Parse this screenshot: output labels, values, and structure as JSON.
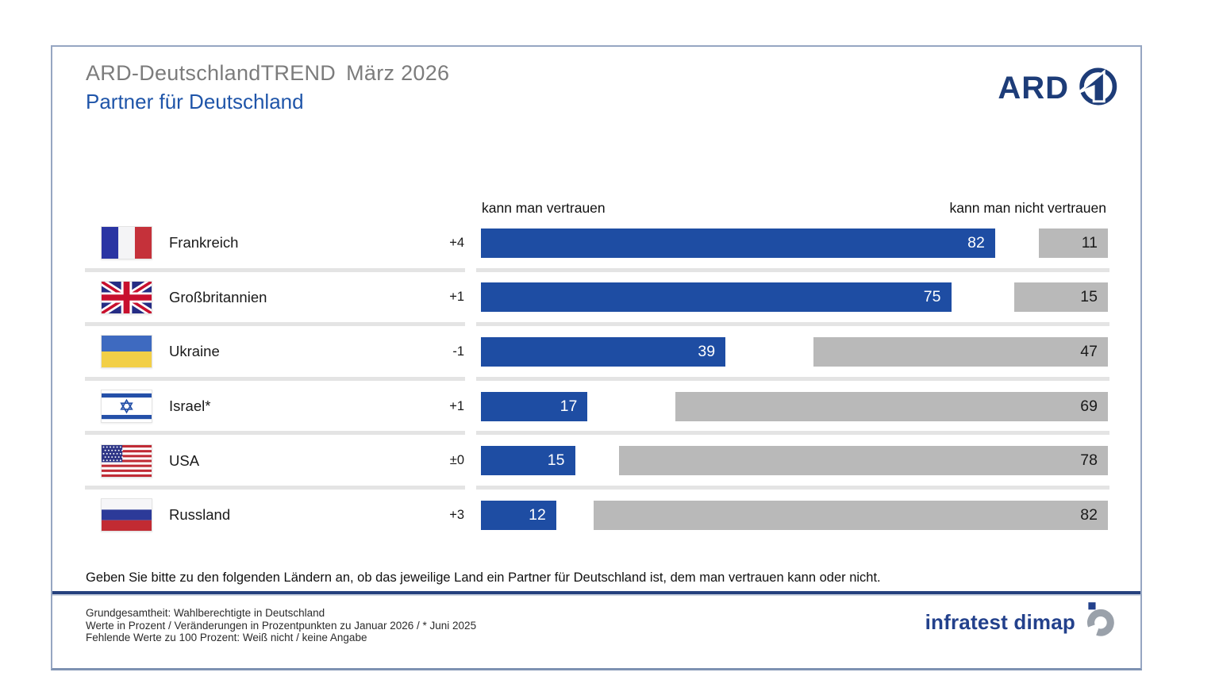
{
  "header": {
    "title": "ARD-DeutschlandTREND",
    "date": "März 2026",
    "subtitle": "Partner für Deutschland",
    "brand": "ARD"
  },
  "columns": {
    "left": "kann man vertrauen",
    "right": "kann man nicht vertrauen"
  },
  "chart_data": {
    "type": "bar",
    "orientation": "horizontal",
    "title": "Partner für Deutschland",
    "categories": [
      "Frankreich",
      "Großbritannien",
      "Ukraine",
      "Israel*",
      "USA",
      "Russland"
    ],
    "changes": [
      "+4",
      "+1",
      "-1",
      "+1",
      "±0",
      "+3"
    ],
    "flags": [
      "fr",
      "gb",
      "ua",
      "il",
      "us",
      "ru"
    ],
    "series": [
      {
        "name": "kann man vertrauen",
        "color": "#1e4da3",
        "values": [
          82,
          75,
          39,
          17,
          15,
          12
        ]
      },
      {
        "name": "kann man nicht vertrauen",
        "color": "#b9b9b9",
        "values": [
          11,
          15,
          47,
          69,
          78,
          82
        ]
      }
    ],
    "xlim": [
      0,
      100
    ],
    "legend_position": "column-headers",
    "grid": false
  },
  "question": "Geben Sie bitte zu den folgenden Ländern an, ob das jeweilige Land ein Partner für Deutschland ist, dem man vertrauen kann oder nicht.",
  "footer": {
    "lines": [
      "Grundgesamtheit: Wahlberechtigte in Deutschland",
      "Werte in Prozent / Veränderungen in Prozentpunkten zu Januar 2026 / * Juni 2025",
      "Fehlende Werte zu 100 Prozent: Weiß nicht / keine Angabe"
    ],
    "source": "infratest dimap"
  },
  "colors": {
    "trust_bar": "#1e4da3",
    "distrust_bar": "#b9b9b9",
    "brand_navy": "#1d3c78",
    "title_gray": "#7c7c7c",
    "rule_blue": "#26417e"
  }
}
